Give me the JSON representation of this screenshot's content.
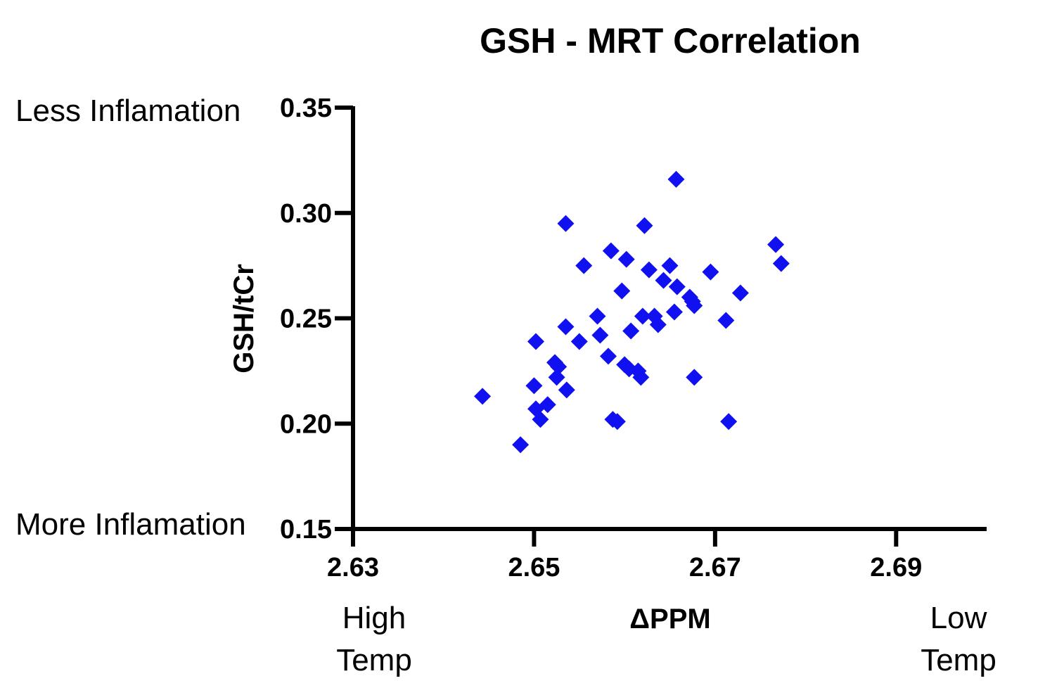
{
  "chart_data": {
    "type": "scatter",
    "title": "GSH - MRT Correlation",
    "xlabel": "ΔPPM",
    "ylabel": "GSH/tCr",
    "xlim": [
      2.63,
      2.7
    ],
    "ylim": [
      0.15,
      0.35
    ],
    "xticks": [
      "2.63",
      "2.65",
      "2.67",
      "2.69"
    ],
    "yticks": [
      "0.15",
      "0.20",
      "0.25",
      "0.30",
      "0.35"
    ],
    "annotations": {
      "y_top": "Less Inflamation",
      "y_bottom": "More Inflamation",
      "x_left_line1": "High",
      "x_left_line2": "Temp",
      "x_right_line1": "Low",
      "x_right_line2": "Temp"
    },
    "marker": "diamond",
    "point_color": "#1010f0",
    "grid": false,
    "legend": "none",
    "series": [
      {
        "name": "GSH/tCr",
        "points": [
          [
            2.6443,
            0.213
          ],
          [
            2.6485,
            0.19
          ],
          [
            2.65,
            0.218
          ],
          [
            2.6502,
            0.239
          ],
          [
            2.6502,
            0.207
          ],
          [
            2.6507,
            0.202
          ],
          [
            2.6515,
            0.209
          ],
          [
            2.6523,
            0.229
          ],
          [
            2.6525,
            0.222
          ],
          [
            2.6527,
            0.227
          ],
          [
            2.6535,
            0.295
          ],
          [
            2.6535,
            0.246
          ],
          [
            2.6536,
            0.216
          ],
          [
            2.655,
            0.239
          ],
          [
            2.6555,
            0.275
          ],
          [
            2.657,
            0.251
          ],
          [
            2.6573,
            0.242
          ],
          [
            2.6582,
            0.232
          ],
          [
            2.6585,
            0.282
          ],
          [
            2.6587,
            0.202
          ],
          [
            2.6592,
            0.201
          ],
          [
            2.6597,
            0.263
          ],
          [
            2.66,
            0.228
          ],
          [
            2.6602,
            0.278
          ],
          [
            2.6605,
            0.226
          ],
          [
            2.6607,
            0.244
          ],
          [
            2.6615,
            0.225
          ],
          [
            2.6618,
            0.222
          ],
          [
            2.662,
            0.251
          ],
          [
            2.6622,
            0.294
          ],
          [
            2.6627,
            0.273
          ],
          [
            2.6633,
            0.251
          ],
          [
            2.6637,
            0.247
          ],
          [
            2.6643,
            0.268
          ],
          [
            2.665,
            0.275
          ],
          [
            2.6655,
            0.253
          ],
          [
            2.6657,
            0.316
          ],
          [
            2.6658,
            0.265
          ],
          [
            2.6672,
            0.26
          ],
          [
            2.6675,
            0.258
          ],
          [
            2.6677,
            0.256
          ],
          [
            2.6677,
            0.222
          ],
          [
            2.6695,
            0.272
          ],
          [
            2.6712,
            0.249
          ],
          [
            2.6715,
            0.201
          ],
          [
            2.6728,
            0.262
          ],
          [
            2.6767,
            0.285
          ],
          [
            2.6773,
            0.276
          ]
        ]
      }
    ]
  }
}
